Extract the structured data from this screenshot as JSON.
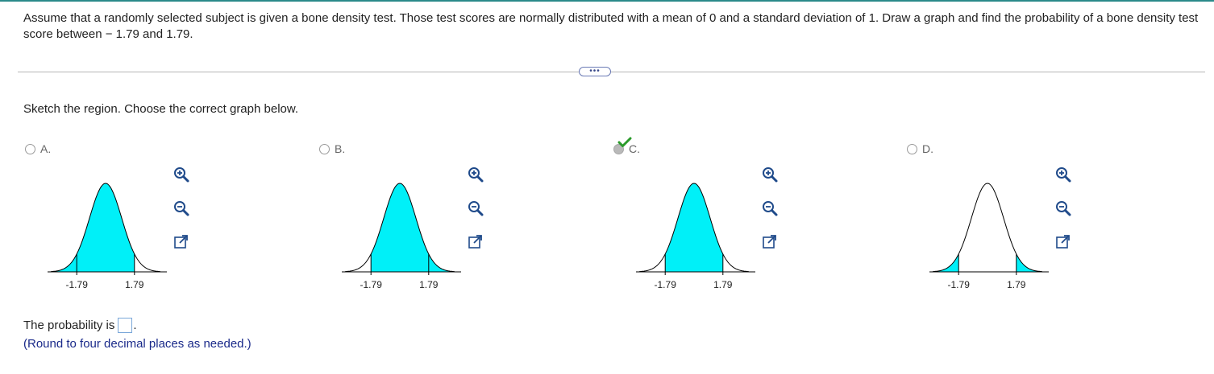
{
  "question": {
    "text": "Assume that a randomly selected subject is given a bone density test. Those test scores are normally distributed with a mean of 0 and a standard deviation of 1. Draw a graph and find the probability of a bone density test score between − 1.79 and 1.79."
  },
  "more_button": {
    "label": "•••"
  },
  "instruction": "Sketch the region. Choose the correct graph below.",
  "options": [
    {
      "letter": "A.",
      "selected": false,
      "shading": "left-of-upper",
      "ticks": [
        "-1.79",
        "1.79"
      ]
    },
    {
      "letter": "B.",
      "selected": false,
      "shading": "right-of-lower",
      "ticks": [
        "-1.79",
        "1.79"
      ]
    },
    {
      "letter": "C.",
      "selected": true,
      "shading": "between",
      "ticks": [
        "-1.79",
        "1.79"
      ]
    },
    {
      "letter": "D.",
      "selected": false,
      "shading": "tails",
      "ticks": [
        "-1.79",
        "1.79"
      ]
    }
  ],
  "answer": {
    "prefix": "The probability is",
    "value": "",
    "suffix": "."
  },
  "hint": "(Round to four decimal places as needed.)",
  "colors": {
    "shade": "#00f0f8",
    "accent": "#2a8a8a",
    "check": "#2a9a2a",
    "hint": "#1a2a8a"
  },
  "icons": {
    "zoom_in": "zoom-in-icon",
    "zoom_out": "zoom-out-icon",
    "popout": "popout-icon",
    "check": "checkmark-icon"
  }
}
